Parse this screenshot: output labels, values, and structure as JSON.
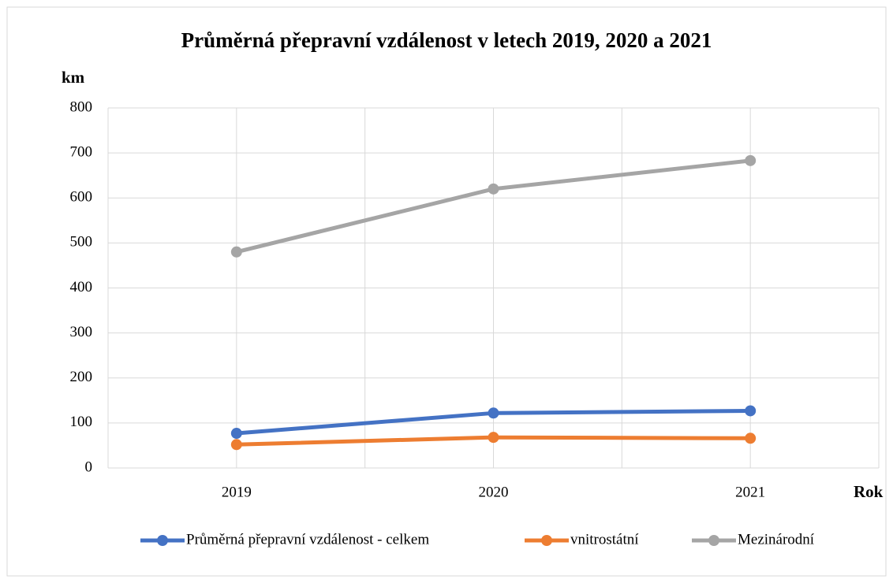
{
  "chart_data": {
    "type": "line",
    "title": "Průměrná přepravní vzdálenost v letech 2019, 2020 a 2021",
    "y_label": "km",
    "x_label": "Rok",
    "categories": [
      "2019",
      "2020",
      "2021"
    ],
    "series": [
      {
        "name": "Průměrná přepravní vzdálenost - celkem",
        "color": "#4472c4",
        "values": [
          77,
          122,
          127
        ]
      },
      {
        "name": "vnitrostátní",
        "color": "#ed7d31",
        "values": [
          52,
          68,
          66
        ]
      },
      {
        "name": "Mezinárodní",
        "color": "#a5a5a5",
        "values": [
          480,
          620,
          683
        ]
      }
    ],
    "ylim": [
      0,
      800
    ],
    "yticks": [
      0,
      100,
      200,
      300,
      400,
      500,
      600,
      700,
      800
    ],
    "grid": true,
    "legend": "bottom"
  }
}
